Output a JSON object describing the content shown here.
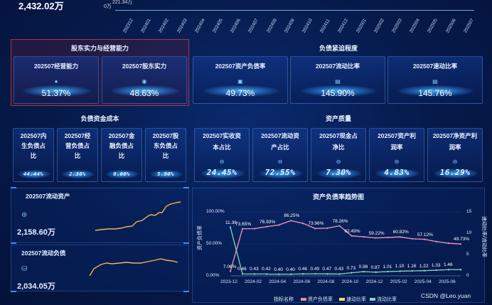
{
  "top": {
    "amount": "2,432.02万",
    "bar_label_top": "221.34万",
    "bar_label_zero": "0万",
    "months": [
      "202312",
      "202401",
      "202402",
      "202403",
      "202404",
      "202405",
      "202406",
      "202407",
      "202408",
      "202409",
      "202410",
      "202411",
      "202412",
      "202501",
      "202502",
      "202503",
      "202504",
      "202505",
      "202506",
      "202507"
    ]
  },
  "shareholder": {
    "title": "股东实力与经营能力",
    "cards": [
      {
        "label": "202507经营能力",
        "value": "51.37%"
      },
      {
        "label": "202507股东实力",
        "value": "48.63%"
      }
    ]
  },
  "debt_pressure": {
    "title": "负债紧迫程度",
    "cards": [
      {
        "label": "202507资产负债率",
        "value": "49.73%"
      },
      {
        "label": "202507流动比率",
        "value": "145.90%"
      },
      {
        "label": "202507速动比率",
        "value": "145.76%"
      }
    ]
  },
  "debt_cost": {
    "title": "负债资金成本",
    "cards": [
      {
        "label1": "202507内",
        "label2": "生负债占",
        "label3": "比",
        "value": "44.44%"
      },
      {
        "label1": "202507经",
        "label2": "营负债占",
        "label3": "比",
        "value": "2.38%"
      },
      {
        "label1": "202507金",
        "label2": "融负债占",
        "label3": "比",
        "value": "0.00%"
      },
      {
        "label1": "202507股",
        "label2": "东负债占",
        "label3": "比",
        "value": "5.90%"
      }
    ]
  },
  "asset_quality": {
    "title": "资产质量",
    "cards": [
      {
        "label1": "202507实收资",
        "label2": "本占比",
        "value": "24.45%"
      },
      {
        "label1": "202507流动资",
        "label2": "产占比",
        "value": "72.55%"
      },
      {
        "label1": "202507现金占",
        "label2": "净比",
        "value": "7.30%"
      },
      {
        "label1": "202507资产利",
        "label2": "润率",
        "value": "4.83%"
      },
      {
        "label1": "202507净资产利",
        "label2": "润率",
        "value": "16.29%"
      }
    ]
  },
  "current_assets": {
    "label": "202507流动资产",
    "value": "2,158.60万"
  },
  "current_liab": {
    "label": "202507流动负债",
    "value": "2,034.05万"
  },
  "trend": {
    "title": "资产负债率趋势图",
    "y_left_label": "资产负债率",
    "y_right_label": "速动比率/流动比率",
    "legend_title": "指标名称",
    "legend": [
      "资产负债率",
      "速动比率",
      "流动比率"
    ],
    "colors": {
      "debt": "#e58fb0",
      "quick": "#e8e06a",
      "current": "#7fd6c8"
    }
  },
  "chart_data": {
    "type": "line",
    "title": "资产负债率趋势图",
    "x": [
      "2023-12",
      "2024-01",
      "2024-02",
      "2024-03",
      "2024-04",
      "2024-05",
      "2024-06",
      "2024-07",
      "2024-08",
      "2024-09",
      "2024-10",
      "2024-11",
      "2024-12",
      "2025-01",
      "2025-02",
      "2025-03",
      "2025-04",
      "2025-05",
      "2025-06",
      "2025-07"
    ],
    "x_tick_labels": [
      "2023-12",
      "2024-02",
      "2024-04",
      "2024-06",
      "2024-08",
      "2024-10",
      "2024-12",
      "2025-02",
      "2025-04",
      "2025-06"
    ],
    "y_left_ticks": [
      "100.00%",
      "50.00%",
      "0.00%"
    ],
    "y_right_ticks": [
      "15",
      "10",
      "5",
      "0"
    ],
    "y_left_range": [
      0,
      100
    ],
    "y_right_range": [
      0,
      15
    ],
    "series": [
      {
        "name": "资产负债率",
        "axis": "left",
        "values": [
          7.06,
          73.65,
          73.8,
          76.93,
          79.5,
          86.25,
          82.0,
          73.96,
          74.5,
          78.26,
          62.49,
          61.0,
          59.22,
          60.0,
          60.82,
          58.0,
          57.12,
          53.5,
          51.0,
          49.73
        ],
        "labels": [
          "7.06%",
          "73.65%",
          null,
          "76.93%",
          null,
          "86.25%",
          null,
          "73.96%",
          null,
          "78.26%",
          "62.49%",
          null,
          "59.22%",
          null,
          "60.82%",
          null,
          "57.12%",
          null,
          null,
          "49.73%"
        ]
      },
      {
        "name": "速动比率",
        "axis": "right",
        "values": [
          11.39,
          0.46,
          0.43,
          0.42,
          0.4,
          0.4,
          0.46,
          0.49,
          0.47,
          0.43,
          0.73,
          0.98,
          0.87,
          1.01,
          1.1,
          1.16,
          1.22,
          1.33,
          1.46,
          1.46
        ]
      },
      {
        "name": "流动比率",
        "axis": "right",
        "values": [
          11.39,
          0.46,
          0.43,
          0.42,
          0.4,
          0.4,
          0.46,
          0.49,
          0.47,
          0.43,
          0.73,
          0.98,
          0.87,
          1.01,
          1.1,
          1.16,
          1.22,
          1.33,
          1.46,
          1.46
        ],
        "labels": [
          "11.39",
          "0.46",
          "0.43",
          "0.42",
          "0.40",
          "0.40",
          "0.46",
          "0.49",
          "0.47",
          "0.43",
          "0.73",
          "0.98",
          "0.87",
          "1.01",
          "1.10",
          "1.16",
          "1.22",
          "1.33",
          "1.46",
          null
        ]
      }
    ]
  },
  "watermark": "CSDN @Leo.yuan"
}
